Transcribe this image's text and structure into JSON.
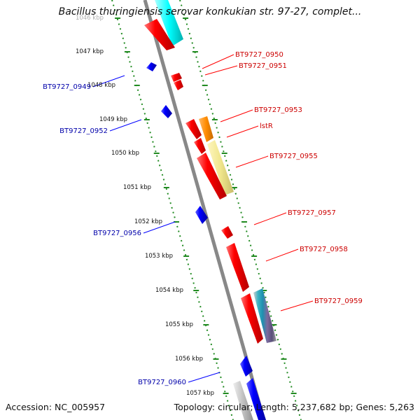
{
  "title": "Bacillus thuringiensis serovar konkukian str. 97-27, complet...",
  "footer": {
    "accession": "Accession: NC_005957",
    "topology": "Topology: circular; Length: 5,237,682 bp; Genes: 5,263"
  },
  "colors": {
    "backbone": "#888888",
    "tick_ring": "#228b22",
    "forward_gene": "#ff0000",
    "reverse_gene": "#0000ff",
    "forward_label": "#cc0000",
    "reverse_label": "#0000aa",
    "feature_cyan": "#00ffff",
    "feature_orange": "#ff8c00",
    "feature_khaki": "#f0e68c",
    "feature_gray": "#c0c0c0"
  },
  "kbp_labels": [
    "1046 kbp",
    "1047 kbp",
    "1048 kbp",
    "1049 kbp",
    "1050 kbp",
    "1051 kbp",
    "1052 kbp",
    "1053 kbp",
    "1054 kbp",
    "1055 kbp",
    "1056 kbp",
    "1057 kbp"
  ],
  "forward_gene_labels": [
    "BT9727_0950",
    "BT9727_0951",
    "BT9727_0953",
    "lstR",
    "BT9727_0955",
    "BT9727_0957",
    "BT9727_0958",
    "BT9727_0959"
  ],
  "reverse_gene_labels": [
    "BT9727_0949",
    "BT9727_0952",
    "BT9727_0956",
    "BT9727_0960"
  ]
}
